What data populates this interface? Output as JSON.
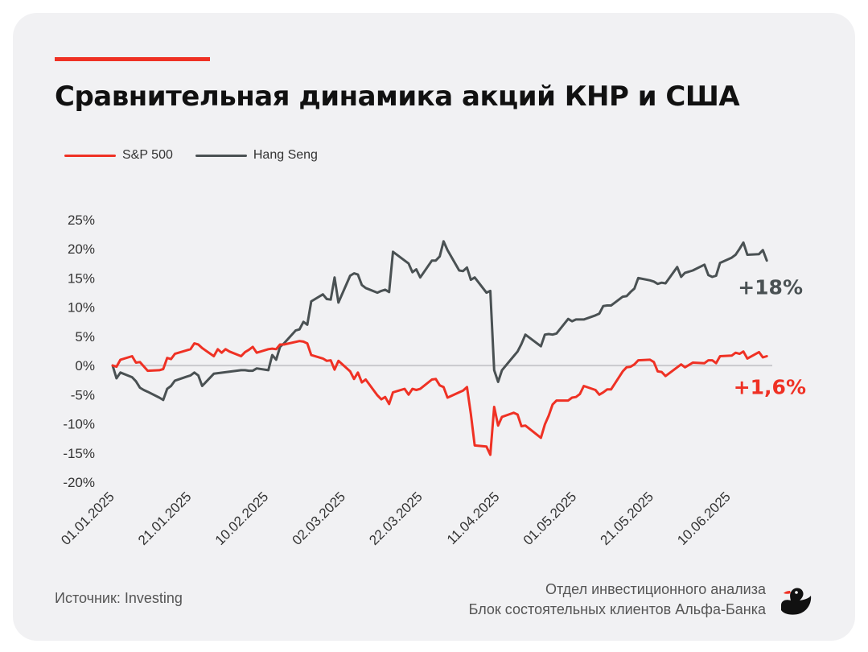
{
  "header": {
    "title": "Сравнительная динамика акций КНР и США"
  },
  "footer": {
    "source": "Источник: Investing",
    "dept_line1": "Отдел инвестиционного анализа",
    "dept_line2": "Блок состоятельных клиентов Альфа-Банка"
  },
  "colors": {
    "accent": "#ef3124",
    "hang_seng": "#4a5153",
    "background": "#f1f1f3"
  },
  "icons": {
    "logo": "duck-icon"
  },
  "chart_data": {
    "type": "line",
    "title": "Сравнительная динамика акций КНР и США",
    "xlabel": "",
    "ylabel": "",
    "ylim": [
      -20,
      25
    ],
    "yticks": [
      "25%",
      "20%",
      "15%",
      "10%",
      "5%",
      "0%",
      "-5%",
      "-10%",
      "-15%",
      "-20%"
    ],
    "xticks": [
      "01.01.2025",
      "21.01.2025",
      "10.02.2025",
      "02.03.2025",
      "22.03.2025",
      "11.04.2025",
      "01.05.2025",
      "21.05.2025",
      "10.06.2025"
    ],
    "xrange": [
      "2025-01-01",
      "2025-06-19"
    ],
    "grid": false,
    "zero_line": true,
    "legend_position": "top-left",
    "series": [
      {
        "name": "S&P 500",
        "color": "#ef3124",
        "end_label": "+1,6%",
        "points": [
          [
            "2025-01-01",
            0
          ],
          [
            "2025-01-02",
            -0.2
          ],
          [
            "2025-01-03",
            1.0
          ],
          [
            "2025-01-06",
            1.6
          ],
          [
            "2025-01-07",
            0.5
          ],
          [
            "2025-01-08",
            0.6
          ],
          [
            "2025-01-10",
            -0.9
          ],
          [
            "2025-01-13",
            -0.8
          ],
          [
            "2025-01-14",
            -0.6
          ],
          [
            "2025-01-15",
            1.3
          ],
          [
            "2025-01-16",
            1.1
          ],
          [
            "2025-01-17",
            2.0
          ],
          [
            "2025-01-21",
            2.8
          ],
          [
            "2025-01-22",
            3.8
          ],
          [
            "2025-01-23",
            3.6
          ],
          [
            "2025-01-24",
            3.0
          ],
          [
            "2025-01-27",
            1.6
          ],
          [
            "2025-01-28",
            2.8
          ],
          [
            "2025-01-29",
            2.2
          ],
          [
            "2025-01-30",
            2.8
          ],
          [
            "2025-01-31",
            2.4
          ],
          [
            "2025-02-03",
            1.6
          ],
          [
            "2025-02-04",
            2.3
          ],
          [
            "2025-02-05",
            2.7
          ],
          [
            "2025-02-06",
            3.2
          ],
          [
            "2025-02-07",
            2.2
          ],
          [
            "2025-02-10",
            2.8
          ],
          [
            "2025-02-11",
            2.9
          ],
          [
            "2025-02-12",
            2.8
          ],
          [
            "2025-02-13",
            3.6
          ],
          [
            "2025-02-14",
            3.6
          ],
          [
            "2025-02-18",
            4.2
          ],
          [
            "2025-02-19",
            4.1
          ],
          [
            "2025-02-20",
            3.8
          ],
          [
            "2025-02-21",
            1.8
          ],
          [
            "2025-02-24",
            1.2
          ],
          [
            "2025-02-25",
            0.8
          ],
          [
            "2025-02-26",
            0.9
          ],
          [
            "2025-02-27",
            -0.7
          ],
          [
            "2025-02-28",
            0.8
          ],
          [
            "2025-03-03",
            -1.0
          ],
          [
            "2025-03-04",
            -2.3
          ],
          [
            "2025-03-05",
            -1.2
          ],
          [
            "2025-03-06",
            -2.9
          ],
          [
            "2025-03-07",
            -2.4
          ],
          [
            "2025-03-10",
            -5.1
          ],
          [
            "2025-03-11",
            -5.8
          ],
          [
            "2025-03-12",
            -5.4
          ],
          [
            "2025-03-13",
            -6.6
          ],
          [
            "2025-03-14",
            -4.6
          ],
          [
            "2025-03-17",
            -4.0
          ],
          [
            "2025-03-18",
            -5.0
          ],
          [
            "2025-03-19",
            -4.0
          ],
          [
            "2025-03-20",
            -4.2
          ],
          [
            "2025-03-21",
            -4.0
          ],
          [
            "2025-03-24",
            -2.4
          ],
          [
            "2025-03-25",
            -2.3
          ],
          [
            "2025-03-26",
            -3.4
          ],
          [
            "2025-03-27",
            -3.7
          ],
          [
            "2025-03-28",
            -5.5
          ],
          [
            "2025-03-31",
            -4.6
          ],
          [
            "2025-04-01",
            -4.3
          ],
          [
            "2025-04-02",
            -3.7
          ],
          [
            "2025-04-03",
            -8.3
          ],
          [
            "2025-04-04",
            -13.7
          ],
          [
            "2025-04-07",
            -13.9
          ],
          [
            "2025-04-08",
            -15.3
          ],
          [
            "2025-04-09",
            -7.1
          ],
          [
            "2025-04-10",
            -10.3
          ],
          [
            "2025-04-11",
            -8.8
          ],
          [
            "2025-04-14",
            -8.1
          ],
          [
            "2025-04-15",
            -8.4
          ],
          [
            "2025-04-16",
            -10.4
          ],
          [
            "2025-04-17",
            -10.3
          ],
          [
            "2025-04-21",
            -12.4
          ],
          [
            "2025-04-22",
            -10.1
          ],
          [
            "2025-04-23",
            -8.6
          ],
          [
            "2025-04-24",
            -6.7
          ],
          [
            "2025-04-25",
            -6.0
          ],
          [
            "2025-04-28",
            -6.0
          ],
          [
            "2025-04-29",
            -5.5
          ],
          [
            "2025-04-30",
            -5.4
          ],
          [
            "2025-05-01",
            -4.9
          ],
          [
            "2025-05-02",
            -3.5
          ],
          [
            "2025-05-05",
            -4.2
          ],
          [
            "2025-05-06",
            -5.0
          ],
          [
            "2025-05-07",
            -4.6
          ],
          [
            "2025-05-08",
            -4.1
          ],
          [
            "2025-05-09",
            -4.1
          ],
          [
            "2025-05-12",
            -1.0
          ],
          [
            "2025-05-13",
            -0.3
          ],
          [
            "2025-05-14",
            -0.2
          ],
          [
            "2025-05-15",
            0.2
          ],
          [
            "2025-05-16",
            0.9
          ],
          [
            "2025-05-19",
            1.0
          ],
          [
            "2025-05-20",
            0.6
          ],
          [
            "2025-05-21",
            -1.0
          ],
          [
            "2025-05-22",
            -1.1
          ],
          [
            "2025-05-23",
            -1.8
          ],
          [
            "2025-05-27",
            0.2
          ],
          [
            "2025-05-28",
            -0.3
          ],
          [
            "2025-05-29",
            0.1
          ],
          [
            "2025-05-30",
            0.5
          ],
          [
            "2025-06-02",
            0.4
          ],
          [
            "2025-06-03",
            0.9
          ],
          [
            "2025-06-04",
            0.9
          ],
          [
            "2025-06-05",
            0.4
          ],
          [
            "2025-06-06",
            1.6
          ],
          [
            "2025-06-09",
            1.7
          ],
          [
            "2025-06-10",
            2.2
          ],
          [
            "2025-06-11",
            2.0
          ],
          [
            "2025-06-12",
            2.4
          ],
          [
            "2025-06-13",
            1.2
          ],
          [
            "2025-06-16",
            2.3
          ],
          [
            "2025-06-17",
            1.4
          ],
          [
            "2025-06-18",
            1.6
          ]
        ]
      },
      {
        "name": "Hang Seng",
        "color": "#4a5153",
        "end_label": "+18%",
        "points": [
          [
            "2025-01-01",
            0
          ],
          [
            "2025-01-02",
            -2.2
          ],
          [
            "2025-01-03",
            -1.2
          ],
          [
            "2025-01-06",
            -2.0
          ],
          [
            "2025-01-07",
            -2.7
          ],
          [
            "2025-01-08",
            -3.8
          ],
          [
            "2025-01-09",
            -4.2
          ],
          [
            "2025-01-10",
            -4.5
          ],
          [
            "2025-01-13",
            -5.5
          ],
          [
            "2025-01-14",
            -5.9
          ],
          [
            "2025-01-15",
            -4.0
          ],
          [
            "2025-01-16",
            -3.5
          ],
          [
            "2025-01-17",
            -2.6
          ],
          [
            "2025-01-20",
            -1.9
          ],
          [
            "2025-01-21",
            -1.7
          ],
          [
            "2025-01-22",
            -1.2
          ],
          [
            "2025-01-23",
            -1.7
          ],
          [
            "2025-01-24",
            -3.5
          ],
          [
            "2025-01-27",
            -1.4
          ],
          [
            "2025-02-03",
            -0.8
          ],
          [
            "2025-02-04",
            -0.8
          ],
          [
            "2025-02-05",
            -0.9
          ],
          [
            "2025-02-06",
            -0.9
          ],
          [
            "2025-02-07",
            -0.5
          ],
          [
            "2025-02-10",
            -0.8
          ],
          [
            "2025-02-11",
            1.8
          ],
          [
            "2025-02-12",
            1.0
          ],
          [
            "2025-02-13",
            3.2
          ],
          [
            "2025-02-14",
            3.8
          ],
          [
            "2025-02-17",
            6.0
          ],
          [
            "2025-02-18",
            6.2
          ],
          [
            "2025-02-19",
            7.5
          ],
          [
            "2025-02-20",
            7.0
          ],
          [
            "2025-02-21",
            11.0
          ],
          [
            "2025-02-24",
            12.2
          ],
          [
            "2025-02-25",
            11.4
          ],
          [
            "2025-02-26",
            11.3
          ],
          [
            "2025-02-27",
            15.1
          ],
          [
            "2025-02-28",
            10.8
          ],
          [
            "2025-03-03",
            15.4
          ],
          [
            "2025-03-04",
            15.8
          ],
          [
            "2025-03-05",
            15.6
          ],
          [
            "2025-03-06",
            13.8
          ],
          [
            "2025-03-07",
            13.3
          ],
          [
            "2025-03-10",
            12.5
          ],
          [
            "2025-03-11",
            12.8
          ],
          [
            "2025-03-12",
            13.0
          ],
          [
            "2025-03-13",
            12.6
          ],
          [
            "2025-03-14",
            19.5
          ],
          [
            "2025-03-17",
            18.0
          ],
          [
            "2025-03-18",
            17.5
          ],
          [
            "2025-03-19",
            16.0
          ],
          [
            "2025-03-20",
            16.5
          ],
          [
            "2025-03-21",
            15.1
          ],
          [
            "2025-03-24",
            18.0
          ],
          [
            "2025-03-25",
            18.0
          ],
          [
            "2025-03-26",
            18.7
          ],
          [
            "2025-03-27",
            21.3
          ],
          [
            "2025-03-28",
            19.8
          ],
          [
            "2025-03-31",
            16.3
          ],
          [
            "2025-04-01",
            16.2
          ],
          [
            "2025-04-02",
            16.8
          ],
          [
            "2025-04-03",
            14.7
          ],
          [
            "2025-04-04",
            15.1
          ],
          [
            "2025-04-07",
            12.5
          ],
          [
            "2025-04-08",
            12.8
          ],
          [
            "2025-04-09",
            -0.8
          ],
          [
            "2025-04-10",
            -2.8
          ],
          [
            "2025-04-11",
            -0.8
          ],
          [
            "2025-04-14",
            1.6
          ],
          [
            "2025-04-15",
            2.4
          ],
          [
            "2025-04-16",
            3.7
          ],
          [
            "2025-04-17",
            5.3
          ],
          [
            "2025-04-21",
            3.3
          ],
          [
            "2025-04-22",
            5.3
          ],
          [
            "2025-04-23",
            5.4
          ],
          [
            "2025-04-24",
            5.3
          ],
          [
            "2025-04-25",
            5.5
          ],
          [
            "2025-04-28",
            8.0
          ],
          [
            "2025-04-29",
            7.6
          ],
          [
            "2025-04-30",
            7.9
          ],
          [
            "2025-05-02",
            7.9
          ],
          [
            "2025-05-05",
            8.6
          ],
          [
            "2025-05-06",
            8.9
          ],
          [
            "2025-05-07",
            10.2
          ],
          [
            "2025-05-08",
            10.3
          ],
          [
            "2025-05-09",
            10.3
          ],
          [
            "2025-05-12",
            11.8
          ],
          [
            "2025-05-13",
            11.9
          ],
          [
            "2025-05-14",
            12.6
          ],
          [
            "2025-05-15",
            13.2
          ],
          [
            "2025-05-16",
            15.0
          ],
          [
            "2025-05-19",
            14.6
          ],
          [
            "2025-05-20",
            14.4
          ],
          [
            "2025-05-21",
            14.0
          ],
          [
            "2025-05-22",
            14.2
          ],
          [
            "2025-05-23",
            14.1
          ],
          [
            "2025-05-26",
            16.9
          ],
          [
            "2025-05-27",
            15.2
          ],
          [
            "2025-05-28",
            15.9
          ],
          [
            "2025-05-29",
            16.1
          ],
          [
            "2025-05-30",
            16.3
          ],
          [
            "2025-06-02",
            17.3
          ],
          [
            "2025-06-03",
            15.5
          ],
          [
            "2025-06-04",
            15.2
          ],
          [
            "2025-06-05",
            15.4
          ],
          [
            "2025-06-06",
            17.6
          ],
          [
            "2025-06-09",
            18.5
          ],
          [
            "2025-06-10",
            19.0
          ],
          [
            "2025-06-11",
            20.0
          ],
          [
            "2025-06-12",
            21.1
          ],
          [
            "2025-06-13",
            19.0
          ],
          [
            "2025-06-16",
            19.1
          ],
          [
            "2025-06-17",
            19.8
          ],
          [
            "2025-06-18",
            18.0
          ]
        ]
      }
    ]
  }
}
